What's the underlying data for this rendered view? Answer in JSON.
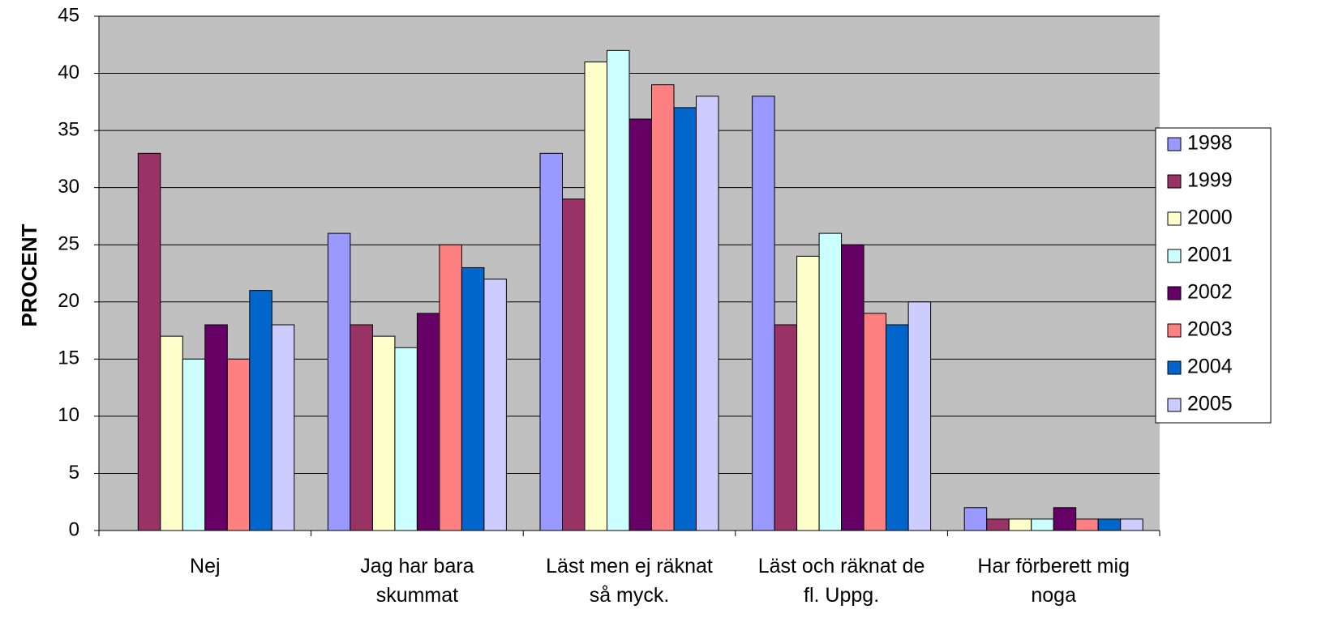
{
  "chart_data": {
    "type": "bar",
    "ylabel": "PROCENT",
    "categories": [
      "Nej",
      "Jag har bara\nskummat",
      "Läst men ej räknat\nså myck.",
      "Läst och räknat de\nfl. Uppg.",
      "Har förberett mig\nnoga"
    ],
    "series": [
      {
        "name": "1998",
        "color": "#9999ff",
        "values": [
          null,
          26,
          33,
          38,
          2
        ]
      },
      {
        "name": "1999",
        "color": "#993366",
        "values": [
          33,
          18,
          29,
          18,
          1
        ]
      },
      {
        "name": "2000",
        "color": "#ffffcc",
        "values": [
          17,
          17,
          41,
          24,
          1
        ]
      },
      {
        "name": "2001",
        "color": "#ccffff",
        "values": [
          15,
          16,
          42,
          26,
          1
        ]
      },
      {
        "name": "2002",
        "color": "#660066",
        "values": [
          18,
          19,
          36,
          25,
          2
        ]
      },
      {
        "name": "2003",
        "color": "#ff8080",
        "values": [
          15,
          25,
          39,
          19,
          1
        ]
      },
      {
        "name": "2004",
        "color": "#0066cc",
        "values": [
          21,
          23,
          37,
          18,
          1
        ]
      },
      {
        "name": "2005",
        "color": "#ccccff",
        "values": [
          18,
          22,
          38,
          20,
          1
        ]
      }
    ],
    "ylim": [
      0,
      45
    ],
    "yticks": [
      0,
      5,
      10,
      15,
      20,
      25,
      30,
      35,
      40,
      45
    ],
    "grid": true,
    "legend": "right"
  }
}
